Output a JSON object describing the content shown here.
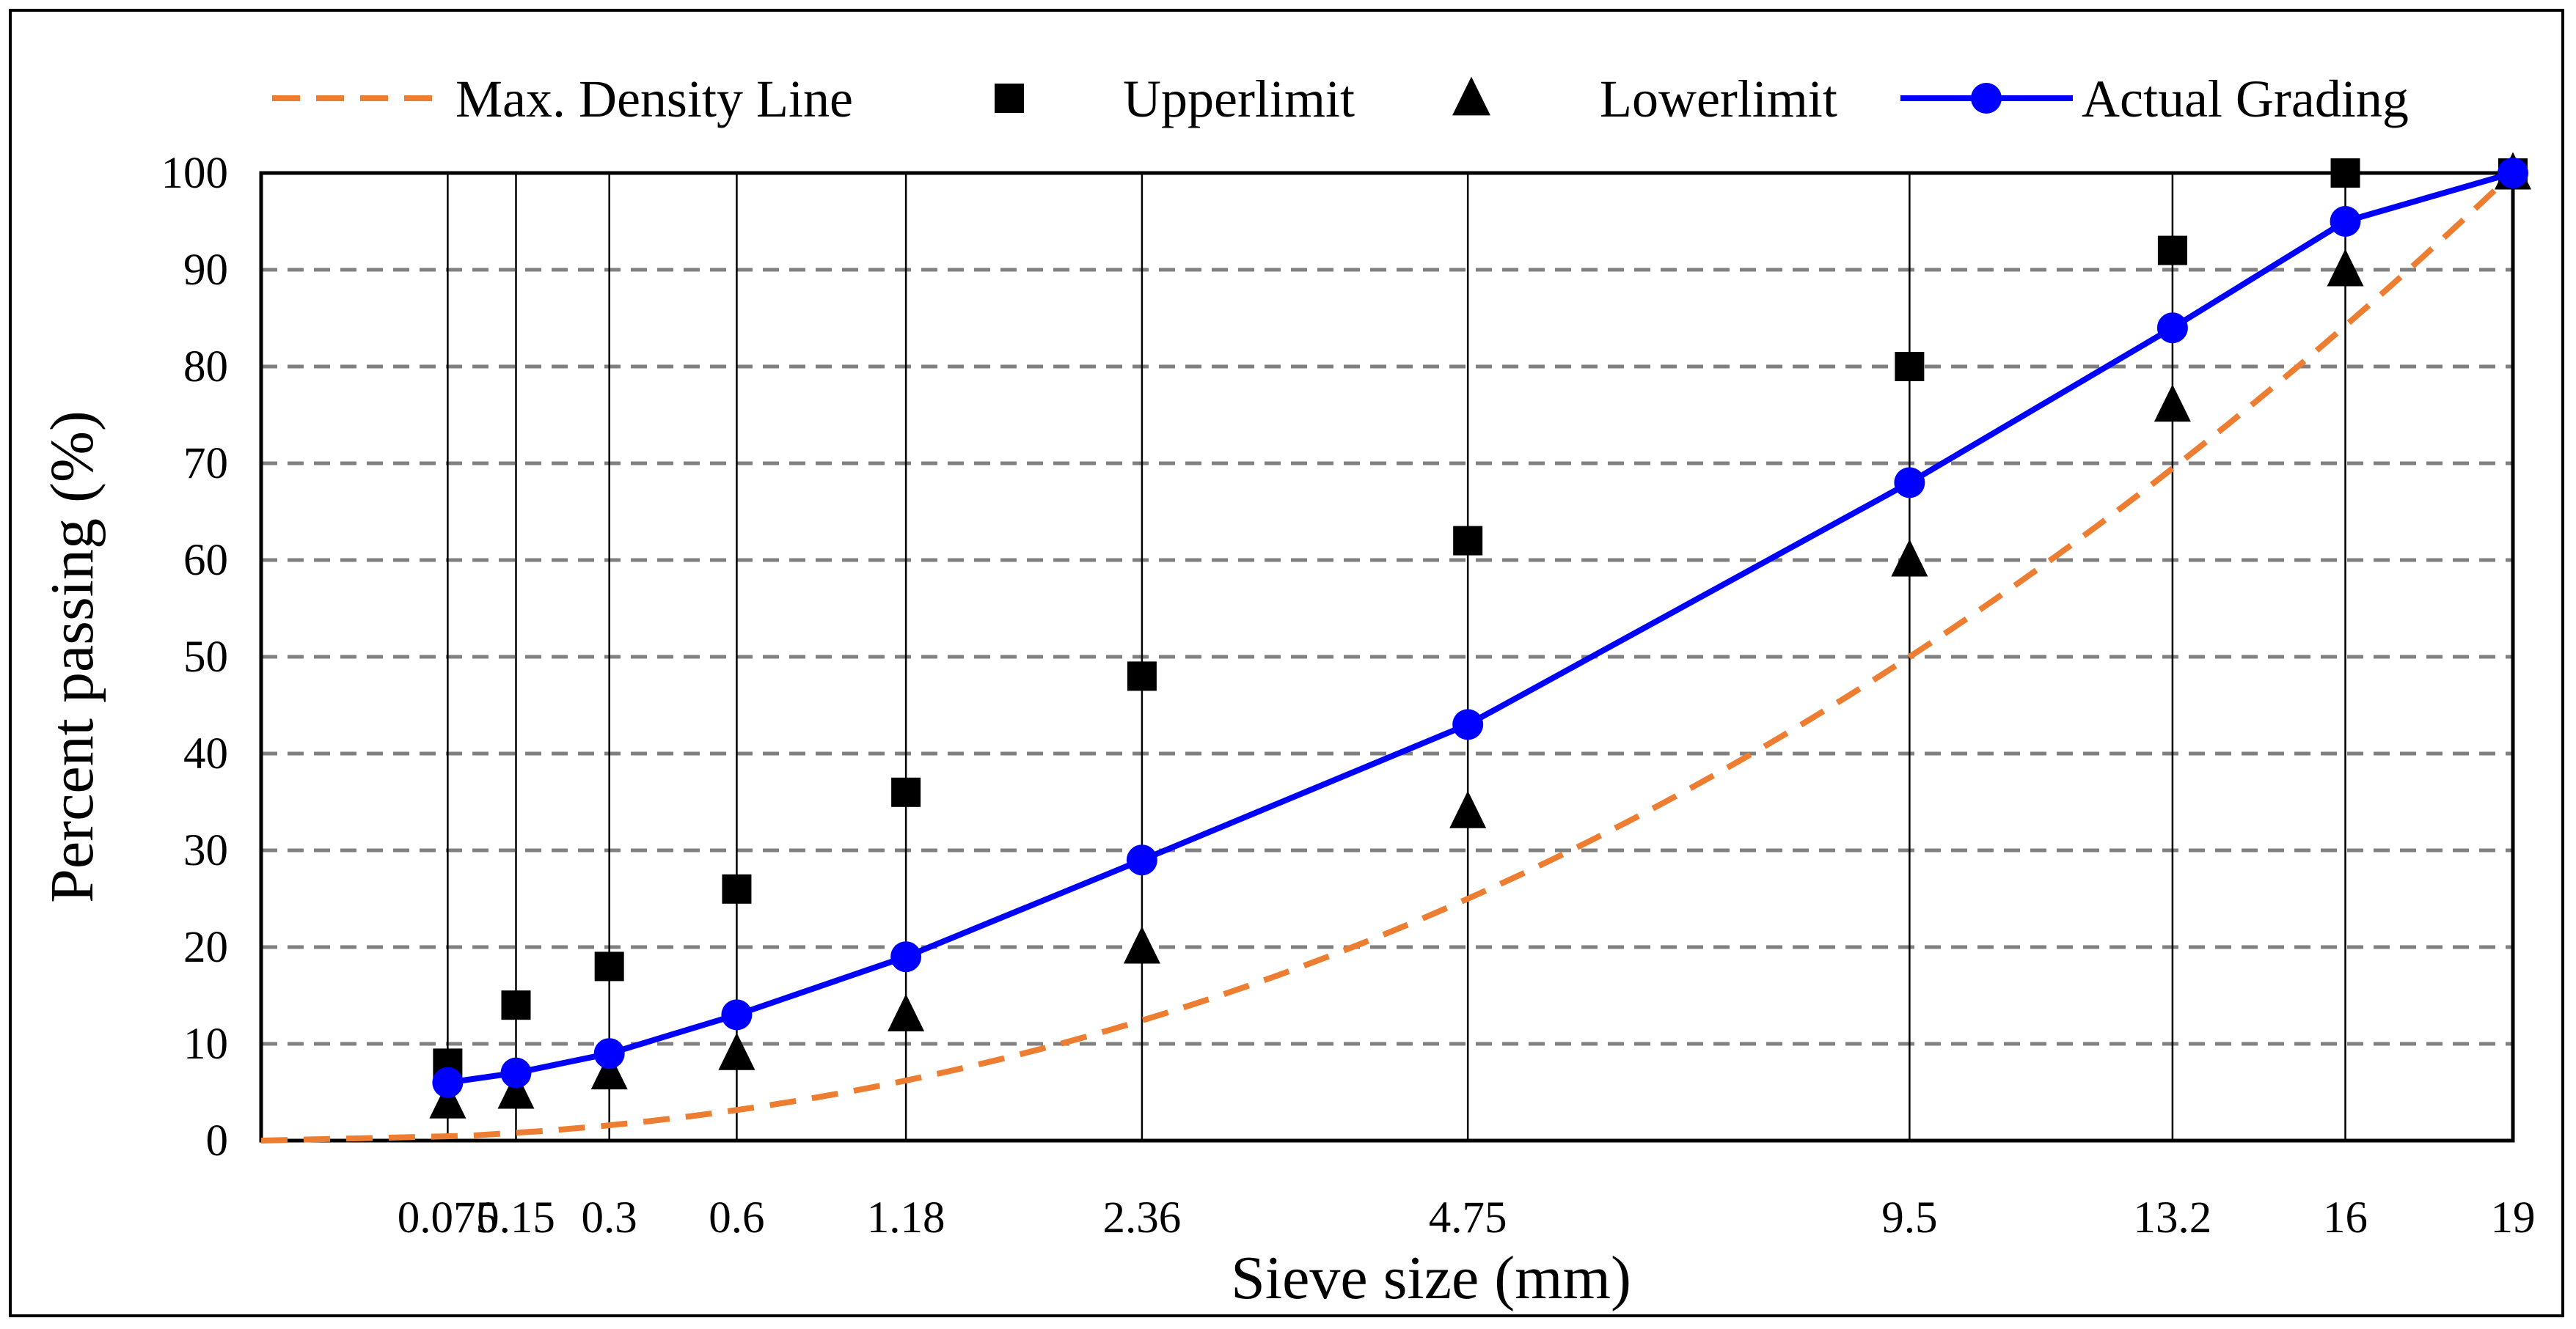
{
  "chart_data": {
    "type": "line",
    "title": "",
    "xlabel": "Sieve size (mm)",
    "ylabel": "Percent passing (%)",
    "x_scale": "power-0.45",
    "xlim": [
      0,
      19
    ],
    "ylim": [
      0,
      100
    ],
    "grid": "horizontal-dashed",
    "legend_position": "top",
    "y_ticks": [
      0,
      10,
      20,
      30,
      40,
      50,
      60,
      70,
      80,
      90,
      100
    ],
    "categories": [
      "0.075",
      "0.15",
      "0.3",
      "0.6",
      "1.18",
      "2.36",
      "4.75",
      "9.5",
      "13.2",
      "16",
      "19"
    ],
    "x": [
      0.075,
      0.15,
      0.3,
      0.6,
      1.18,
      2.36,
      4.75,
      9.5,
      13.2,
      16,
      19
    ],
    "series": [
      {
        "name": "Max. Density Line",
        "style": "dashed-line",
        "color": "#ED7D31",
        "x": [
          0,
          19
        ],
        "values": [
          0,
          100
        ]
      },
      {
        "name": "Upperlimit",
        "style": "square-marker",
        "color": "#000000",
        "values": [
          8,
          14,
          18,
          26,
          36,
          48,
          62,
          80,
          92,
          100,
          100
        ]
      },
      {
        "name": "Lowerlimit",
        "style": "triangle-marker",
        "color": "#000000",
        "values": [
          4,
          5,
          7,
          9,
          13,
          20,
          34,
          60,
          76,
          90,
          100
        ]
      },
      {
        "name": "Actual Grading",
        "style": "line-circle",
        "color": "#0000FF",
        "values": [
          6,
          7,
          9,
          13,
          19,
          29,
          43,
          68,
          84,
          95,
          100
        ]
      }
    ]
  }
}
